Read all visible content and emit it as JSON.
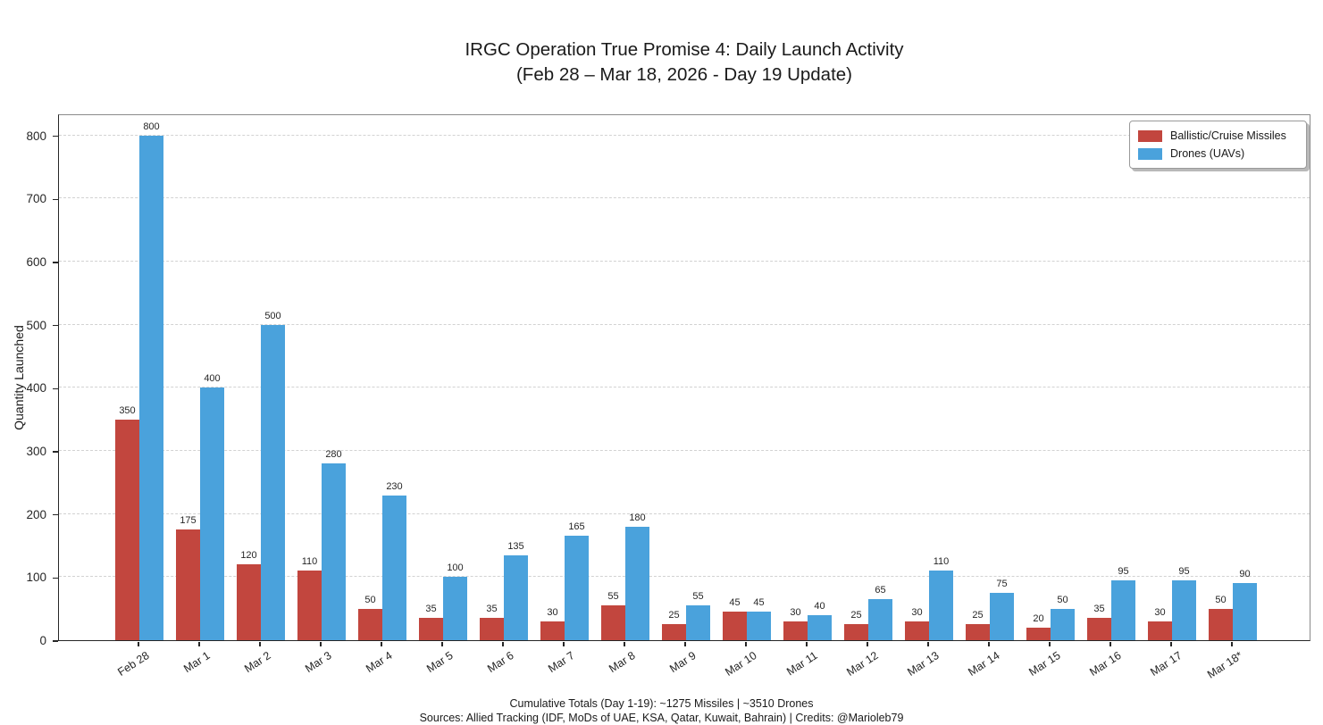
{
  "title": {
    "line1": "IRGC Operation True Promise 4: Daily Launch Activity",
    "line2": "(Feb 28 – Mar 18, 2026 - Day 19 Update)"
  },
  "chart_data": {
    "type": "bar",
    "categories": [
      "Feb 28",
      "Mar 1",
      "Mar 2",
      "Mar 3",
      "Mar 4",
      "Mar 5",
      "Mar 6",
      "Mar 7",
      "Mar 8",
      "Mar 9",
      "Mar 10",
      "Mar 11",
      "Mar 12",
      "Mar 13",
      "Mar 14",
      "Mar 15",
      "Mar 16",
      "Mar 17",
      "Mar 18*"
    ],
    "series": [
      {
        "name": "Ballistic/Cruise Missiles",
        "color": "#c2463e",
        "values": [
          350,
          175,
          120,
          110,
          50,
          35,
          35,
          30,
          55,
          25,
          45,
          30,
          25,
          30,
          25,
          20,
          35,
          30,
          50
        ]
      },
      {
        "name": "Drones (UAVs)",
        "color": "#4aa2dc",
        "values": [
          800,
          400,
          500,
          280,
          230,
          100,
          135,
          165,
          180,
          55,
          45,
          40,
          65,
          110,
          75,
          50,
          95,
          95,
          90
        ]
      }
    ],
    "title": "IRGC Operation True Promise 4: Daily Launch Activity (Feb 28 – Mar 18, 2026 - Day 19 Update)",
    "xlabel": "",
    "ylabel": "Quantity Launched",
    "ylim": [
      0,
      835
    ],
    "yticks": [
      0,
      100,
      200,
      300,
      400,
      500,
      600,
      700,
      800
    ],
    "grid": "horizontal-dashed",
    "legend_position": "upper right",
    "bar_value_labels": true
  },
  "footer": {
    "line1": "Cumulative Totals (Day 1-19): ~1275 Missiles | ~3510 Drones",
    "line2": "Sources: Allied Tracking (IDF, MoDs of UAE, KSA, Qatar, Kuwait, Bahrain) | Credits: @Marioleb79"
  }
}
